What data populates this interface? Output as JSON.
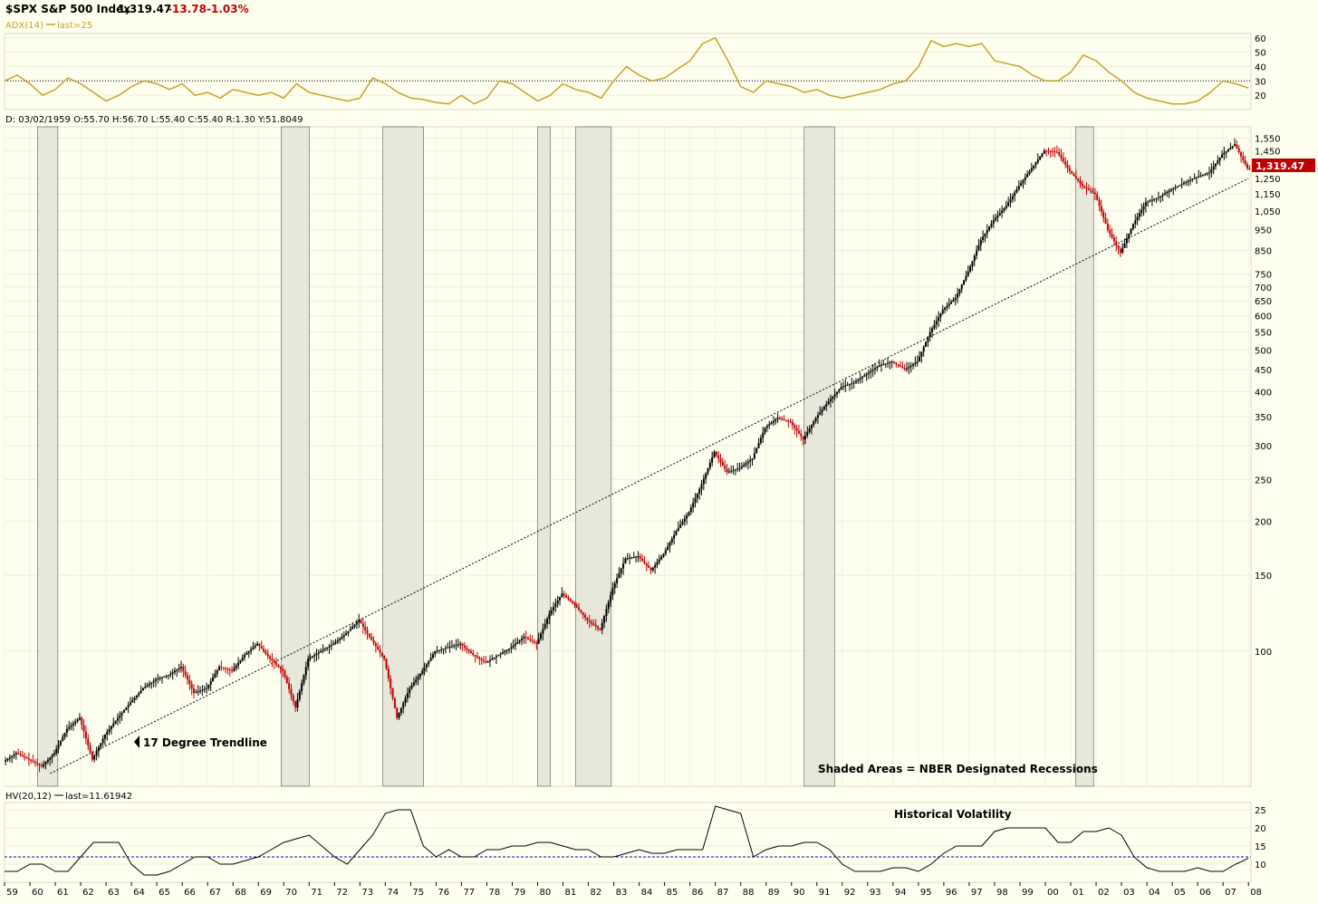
{
  "header": {
    "symbol_name": "$SPX S&P 500 Index",
    "last": "1,319.47",
    "change": "-13.78",
    "change_pct": "-1.03%"
  },
  "colors": {
    "background": "#fffff0",
    "panel": "#fffff0",
    "grid": "#f0f0dc",
    "adx": "#c8a028",
    "up": "#000000",
    "down": "#c00000",
    "recession": "#e8e8da",
    "hv_ref": "#0000cc",
    "price_badge": "#c00000"
  },
  "adx_panel": {
    "label": "ADX(14)",
    "last_label": "last=25",
    "ticks": [
      "60",
      "50",
      "40",
      "30",
      "20"
    ],
    "ref_value": 30
  },
  "ohlc_readout": "D: 03/02/1959 O:55.70 H:56.70 L:55.40 C:55.40 R:1.30 Y:51.8049",
  "price_panel": {
    "ticks": [
      "1,550",
      "1,450",
      "1,250",
      "1,150",
      "1,050",
      "950",
      "850",
      "750",
      "700",
      "650",
      "600",
      "550",
      "500",
      "450",
      "400",
      "350",
      "300",
      "250",
      "200",
      "150",
      "100"
    ],
    "price_badge": "1,319.47",
    "trendline_label": "17 Degree Trendline",
    "recession_label": "Shaded Areas = NBER Designated Recessions"
  },
  "hv_panel": {
    "label": "HV(20,12)",
    "last_label": "last=11.61942",
    "title": "Historical Volatility",
    "ticks": [
      "25",
      "20",
      "15",
      "10"
    ],
    "ref_value": 12
  },
  "x_axis": {
    "labels": [
      "59",
      "60",
      "61",
      "62",
      "63",
      "64",
      "65",
      "66",
      "67",
      "68",
      "69",
      "70",
      "71",
      "72",
      "73",
      "74",
      "75",
      "76",
      "77",
      "78",
      "79",
      "80",
      "81",
      "82",
      "83",
      "84",
      "85",
      "86",
      "87",
      "88",
      "89",
      "90",
      "91",
      "92",
      "93",
      "94",
      "95",
      "96",
      "97",
      "98",
      "99",
      "00",
      "01",
      "02",
      "03",
      "04",
      "05",
      "06",
      "07",
      "08"
    ]
  },
  "chart_data": [
    {
      "type": "line",
      "name": "ADX(14)",
      "x": [
        1959,
        1959.5,
        1960,
        1960.5,
        1961,
        1961.5,
        1962,
        1962.5,
        1963,
        1963.5,
        1964,
        1964.5,
        1965,
        1965.5,
        1966,
        1966.5,
        1967,
        1967.5,
        1968,
        1968.5,
        1969,
        1969.5,
        1970,
        1970.5,
        1971,
        1971.5,
        1972,
        1972.5,
        1973,
        1973.5,
        1974,
        1974.5,
        1975,
        1975.5,
        1976,
        1976.5,
        1977,
        1977.5,
        1978,
        1978.5,
        1979,
        1979.5,
        1980,
        1980.5,
        1981,
        1981.5,
        1982,
        1982.5,
        1983,
        1983.5,
        1984,
        1984.5,
        1985,
        1985.5,
        1986,
        1986.5,
        1987,
        1987.5,
        1988,
        1988.5,
        1989,
        1989.5,
        1990,
        1990.5,
        1991,
        1991.5,
        1992,
        1992.5,
        1993,
        1993.5,
        1994,
        1994.5,
        1995,
        1995.5,
        1996,
        1996.5,
        1997,
        1997.5,
        1998,
        1998.5,
        1999,
        1999.5,
        2000,
        2000.5,
        2001,
        2001.5,
        2002,
        2002.5,
        2003,
        2003.5,
        2004,
        2004.5,
        2005,
        2005.5,
        2006,
        2006.5,
        2007,
        2007.5,
        2008
      ],
      "y": [
        30,
        34,
        28,
        20,
        24,
        32,
        28,
        22,
        16,
        20,
        26,
        30,
        28,
        24,
        28,
        20,
        22,
        18,
        24,
        22,
        20,
        22,
        18,
        28,
        22,
        20,
        18,
        16,
        18,
        32,
        28,
        22,
        18,
        17,
        15,
        14,
        20,
        14,
        18,
        30,
        28,
        22,
        16,
        20,
        28,
        24,
        22,
        18,
        30,
        40,
        34,
        30,
        32,
        38,
        44,
        56,
        60,
        44,
        26,
        22,
        30,
        28,
        26,
        22,
        24,
        20,
        18,
        20,
        22,
        24,
        28,
        30,
        40,
        58,
        54,
        56,
        54,
        56,
        44,
        42,
        40,
        34,
        30,
        30,
        36,
        48,
        44,
        36,
        30,
        22,
        18,
        16,
        14,
        14,
        16,
        22,
        30,
        28,
        25
      ],
      "ref_line": 30,
      "ylim": [
        10,
        63
      ]
    },
    {
      "type": "candlestick",
      "name": "$SPX S&P 500 Index",
      "x": [
        1959,
        1959.5,
        1960,
        1960.5,
        1961,
        1961.5,
        1962,
        1962.5,
        1963,
        1963.5,
        1964,
        1964.5,
        1965,
        1965.5,
        1966,
        1966.5,
        1967,
        1967.5,
        1968,
        1968.5,
        1969,
        1969.5,
        1970,
        1970.5,
        1971,
        1971.5,
        1972,
        1972.5,
        1973,
        1973.5,
        1974,
        1974.5,
        1975,
        1975.5,
        1976,
        1976.5,
        1977,
        1977.5,
        1978,
        1978.5,
        1979,
        1979.5,
        1980,
        1980.5,
        1981,
        1981.5,
        1982,
        1982.5,
        1983,
        1983.5,
        1984,
        1984.5,
        1985,
        1985.5,
        1986,
        1986.5,
        1987,
        1987.5,
        1988,
        1988.5,
        1989,
        1989.5,
        1990,
        1990.5,
        1991,
        1991.5,
        1992,
        1992.5,
        1993,
        1993.5,
        1994,
        1994.5,
        1995,
        1995.5,
        1996,
        1996.5,
        1997,
        1997.5,
        1998,
        1998.5,
        1999,
        1999.5,
        2000,
        2000.5,
        2001,
        2001.5,
        2002,
        2002.5,
        2003,
        2003.5,
        2004,
        2004.5,
        2005,
        2005.5,
        2006,
        2006.5,
        2007,
        2007.5,
        2008
      ],
      "y": [
        55.4,
        58,
        56,
        54,
        58,
        66,
        70,
        56,
        64,
        70,
        76,
        82,
        86,
        88,
        92,
        80,
        82,
        92,
        90,
        98,
        104,
        96,
        90,
        74,
        96,
        100,
        104,
        110,
        118,
        106,
        96,
        70,
        82,
        90,
        100,
        102,
        104,
        98,
        94,
        98,
        102,
        108,
        104,
        122,
        136,
        128,
        118,
        112,
        140,
        164,
        166,
        154,
        168,
        190,
        210,
        244,
        290,
        260,
        266,
        280,
        330,
        348,
        340,
        310,
        348,
        380,
        410,
        420,
        440,
        460,
        470,
        450,
        470,
        550,
        620,
        660,
        760,
        900,
        1000,
        1080,
        1200,
        1320,
        1450,
        1440,
        1300,
        1200,
        1150,
        950,
        840,
        980,
        1100,
        1130,
        1180,
        1220,
        1260,
        1290,
        1420,
        1500,
        1319.47
      ],
      "ylim": [
        50,
        1600
      ],
      "log_scale": true
    },
    {
      "type": "line",
      "name": "17 Degree Trendline",
      "x": [
        1960.8,
        2008
      ],
      "y": [
        52,
        1250
      ],
      "style": "dotted"
    },
    {
      "type": "area",
      "name": "NBER Designated Recessions",
      "ranges": [
        [
          1960.3,
          1961.1
        ],
        [
          1969.9,
          1971.0
        ],
        [
          1973.9,
          1975.5
        ],
        [
          1980.0,
          1980.5
        ],
        [
          1981.5,
          1982.9
        ],
        [
          1990.5,
          1991.7
        ],
        [
          2001.2,
          2001.9
        ]
      ]
    },
    {
      "type": "line",
      "name": "HV(20,12)",
      "x": [
        1959,
        1959.5,
        1960,
        1960.5,
        1961,
        1961.5,
        1962,
        1962.5,
        1963,
        1963.5,
        1964,
        1964.5,
        1965,
        1965.5,
        1966,
        1966.5,
        1967,
        1967.5,
        1968,
        1968.5,
        1969,
        1969.5,
        1970,
        1970.5,
        1971,
        1971.5,
        1972,
        1972.5,
        1973,
        1973.5,
        1974,
        1974.5,
        1975,
        1975.5,
        1976,
        1976.5,
        1977,
        1977.5,
        1978,
        1978.5,
        1979,
        1979.5,
        1980,
        1980.5,
        1981,
        1981.5,
        1982,
        1982.5,
        1983,
        1983.5,
        1984,
        1984.5,
        1985,
        1985.5,
        1986,
        1986.5,
        1987,
        1987.5,
        1988,
        1988.5,
        1989,
        1989.5,
        1990,
        1990.5,
        1991,
        1991.5,
        1992,
        1992.5,
        1993,
        1993.5,
        1994,
        1994.5,
        1995,
        1995.5,
        1996,
        1996.5,
        1997,
        1997.5,
        1998,
        1998.5,
        1999,
        1999.5,
        2000,
        2000.5,
        2001,
        2001.5,
        2002,
        2002.5,
        2003,
        2003.5,
        2004,
        2004.5,
        2005,
        2005.5,
        2006,
        2006.5,
        2007,
        2007.5,
        2008
      ],
      "y": [
        8,
        8,
        10,
        10,
        8,
        8,
        12,
        16,
        16,
        16,
        10,
        7,
        7,
        8,
        10,
        12,
        12,
        10,
        10,
        11,
        12,
        14,
        16,
        17,
        18,
        15,
        12,
        10,
        14,
        18,
        24,
        25,
        25,
        15,
        12,
        14,
        12,
        12,
        14,
        14,
        15,
        15,
        16,
        16,
        15,
        14,
        14,
        12,
        12,
        13,
        14,
        13,
        13,
        14,
        14,
        14,
        26,
        25,
        24,
        12,
        14,
        15,
        15,
        16,
        16,
        14,
        10,
        8,
        8,
        8,
        9,
        9,
        8,
        10,
        13,
        15,
        15,
        15,
        19,
        20,
        20,
        20,
        20,
        16,
        16,
        19,
        19,
        20,
        18,
        12,
        9,
        8,
        8,
        8,
        9,
        8,
        8,
        10,
        11.6
      ],
      "ref_line": 12,
      "ylim": [
        5,
        27
      ]
    }
  ]
}
